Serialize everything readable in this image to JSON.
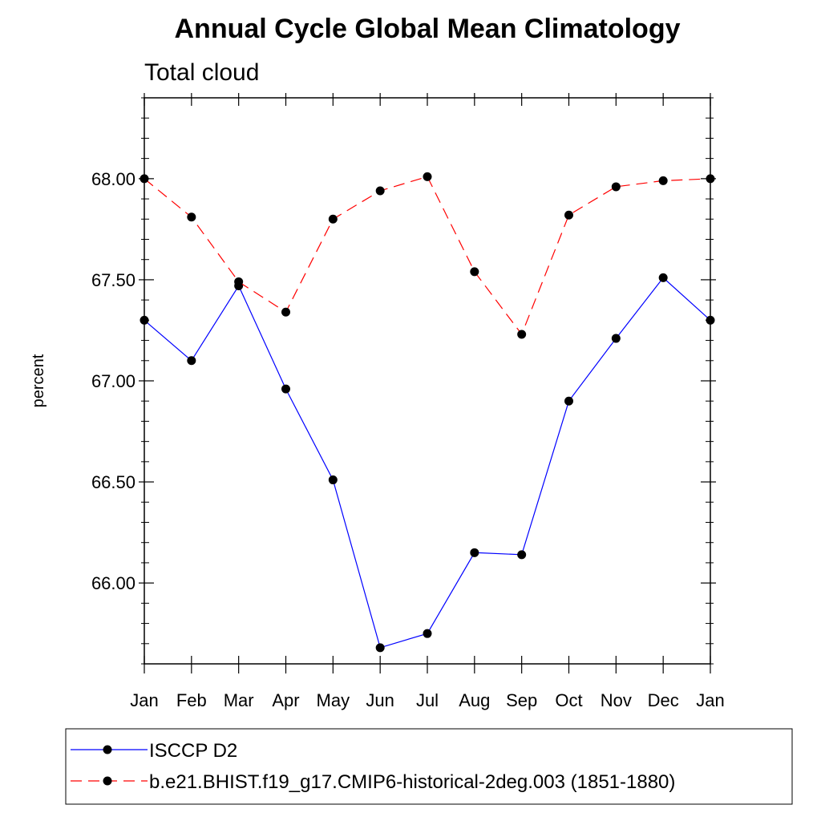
{
  "chart_data": {
    "type": "line",
    "title": "Annual Cycle Global Mean Climatology",
    "subtitle": "Total cloud",
    "xlabel": "",
    "ylabel": "percent",
    "categories": [
      "Jan",
      "Feb",
      "Mar",
      "Apr",
      "May",
      "Jun",
      "Jul",
      "Aug",
      "Sep",
      "Oct",
      "Nov",
      "Dec",
      "Jan"
    ],
    "ylim": [
      65.6,
      68.4
    ],
    "yticks": [
      66.0,
      66.5,
      67.0,
      67.5,
      68.0
    ],
    "ytick_labels": [
      "66.00",
      "66.50",
      "67.00",
      "67.50",
      "68.00"
    ],
    "grid": false,
    "legend_position": "bottom",
    "series": [
      {
        "name": "ISCCP D2",
        "color": "#0000ff",
        "dashed": false,
        "marker": "filled-circle",
        "values": [
          67.3,
          67.1,
          67.47,
          66.96,
          66.51,
          65.68,
          65.75,
          66.15,
          66.14,
          66.9,
          67.21,
          67.51,
          67.3
        ]
      },
      {
        "name": "b.e21.BHIST.f19_g17.CMIP6-historical-2deg.003 (1851-1880)",
        "color": "#ff0000",
        "dashed": true,
        "marker": "filled-circle",
        "values": [
          68.0,
          67.81,
          67.49,
          67.34,
          67.8,
          67.94,
          68.01,
          67.54,
          67.23,
          67.82,
          67.96,
          67.99,
          68.0
        ]
      }
    ]
  }
}
